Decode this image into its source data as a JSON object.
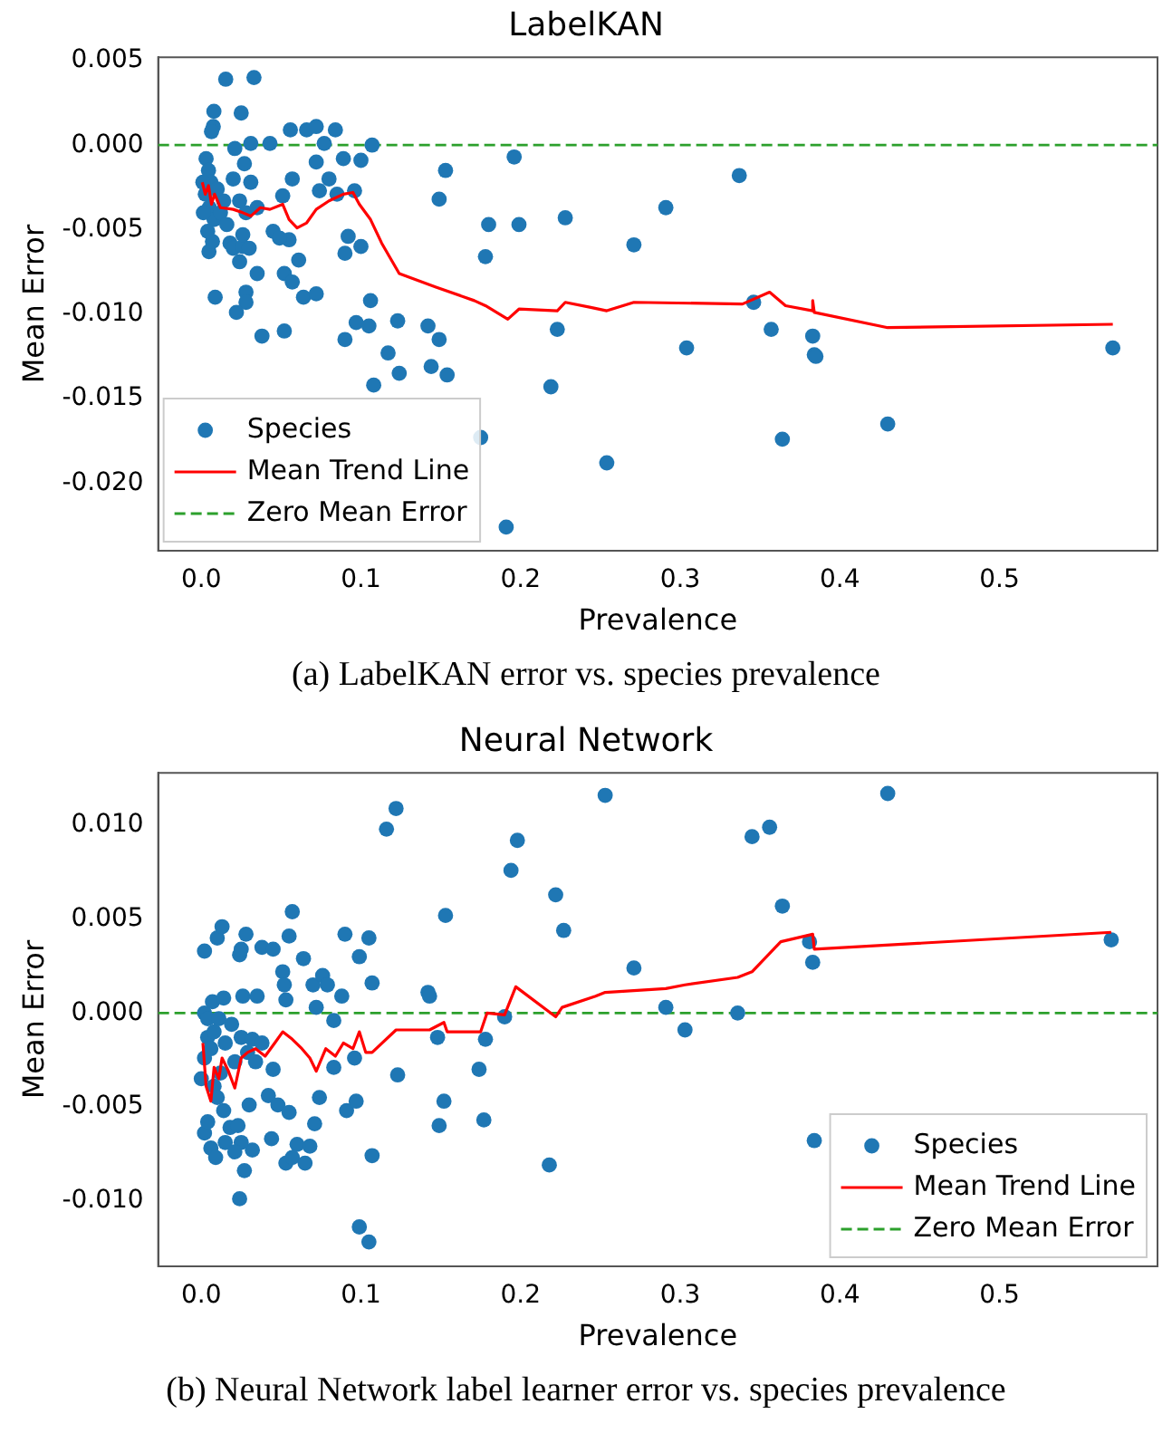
{
  "chart_data": [
    {
      "type": "scatter",
      "title": "LabelKAN",
      "xlabel": "Prevalence",
      "ylabel": "Mean Error",
      "annotations": [
        "(a) LabelKAN error vs. species prevalence"
      ],
      "xlim": [
        -0.027,
        0.599
      ],
      "ylim": [
        -0.024,
        0.0052
      ],
      "xticks": [
        {
          "value": 0,
          "label": "0.0"
        },
        {
          "value": 0.1,
          "label": "0.1"
        },
        {
          "value": 0.2,
          "label": "0.2"
        },
        {
          "value": 0.3,
          "label": "0.3"
        },
        {
          "value": 0.4,
          "label": "0.4"
        },
        {
          "value": 0.5,
          "label": "0.5"
        }
      ],
      "yticks": [
        {
          "value": -0.02,
          "label": "-0.020"
        },
        {
          "value": -0.015,
          "label": "-0.015"
        },
        {
          "value": -0.01,
          "label": "-0.010"
        },
        {
          "value": -0.005,
          "label": "-0.005"
        },
        {
          "value": 0,
          "label": "0.000"
        },
        {
          "value": 0.005,
          "label": "0.005"
        }
      ],
      "grid": false,
      "legend": "bottom left",
      "ref_lines": [
        {
          "axis": "y",
          "value": 0,
          "label": "Zero Mean Error",
          "color": "#2ca02c",
          "line_style": "dashed"
        }
      ],
      "series": [
        {
          "name": "Species",
          "type": "scatter",
          "color": "#1f77b4",
          "marker": "circle",
          "x": [
            0.0153,
            0.033,
            0.0079,
            0.025,
            0.0075,
            0.0064,
            0.0558,
            0.066,
            0.072,
            0.084,
            0.043,
            0.031,
            0.077,
            0.107,
            0.021,
            0.027,
            0.072,
            0.089,
            0.1,
            0.196,
            0.153,
            0.057,
            0.08,
            0.02,
            0.031,
            0.074,
            0.085,
            0.096,
            0.149,
            0.051,
            0.228,
            0.18,
            0.199,
            0.045,
            0.055,
            0.049,
            0.092,
            0.09,
            0.1,
            0.178,
            0.018,
            0.02,
            0.026,
            0.03,
            0.024,
            0.035,
            0.061,
            0.052,
            0.057,
            0.028,
            0.028,
            0.064,
            0.072,
            0.106,
            0.0087,
            0.022,
            0.038,
            0.052,
            0.09,
            0.097,
            0.105,
            0.123,
            0.142,
            0.149,
            0.223,
            0.117,
            0.124,
            0.144,
            0.154,
            0.108,
            0.219,
            0.175,
            0.191,
            0.0048,
            0.003,
            0.0045,
            0.006,
            0.0025,
            0.005,
            0.008,
            0.004,
            0.012,
            0.014,
            0.016,
            0.01,
            0.024,
            0.028,
            0.035,
            0.026,
            0.007,
            0.001,
            0.0013,
            0.337,
            0.291,
            0.271,
            0.346,
            0.357,
            0.383,
            0.384,
            0.385,
            0.304,
            0.43,
            0.364,
            0.254,
            0.571
          ],
          "values": [
            0.0039,
            0.004,
            0.002,
            0.0019,
            0.0011,
            0.0008,
            0.0009,
            0.0009,
            0.0011,
            0.0009,
            0.0001,
            0.0001,
            0.0001,
            0.0,
            -0.0002,
            -0.0011,
            -0.001,
            -0.0008,
            -0.0009,
            -0.0007,
            -0.0015,
            -0.002,
            -0.002,
            -0.002,
            -0.0022,
            -0.0027,
            -0.0029,
            -0.0027,
            -0.0032,
            -0.003,
            -0.0043,
            -0.0047,
            -0.0047,
            -0.0051,
            -0.0056,
            -0.0055,
            -0.0054,
            -0.0064,
            -0.006,
            -0.0066,
            -0.0058,
            -0.0061,
            -0.006,
            -0.0061,
            -0.0069,
            -0.0076,
            -0.0068,
            -0.0076,
            -0.0081,
            -0.0087,
            -0.0093,
            -0.009,
            -0.0088,
            -0.0092,
            -0.009,
            -0.0099,
            -0.0113,
            -0.011,
            -0.0115,
            -0.0105,
            -0.0107,
            -0.0104,
            -0.0107,
            -0.0115,
            -0.0109,
            -0.0123,
            -0.0135,
            -0.0131,
            -0.0136,
            -0.0142,
            -0.0143,
            -0.0173,
            -0.0226,
            -0.0063,
            -0.0008,
            -0.0015,
            -0.0022,
            -0.0029,
            -0.0037,
            -0.0044,
            -0.0051,
            -0.004,
            -0.0033,
            -0.0047,
            -0.0026,
            -0.0033,
            -0.004,
            -0.0037,
            -0.0053,
            -0.0057,
            -0.0022,
            -0.004,
            -0.0018,
            -0.0037,
            -0.0059,
            -0.0093,
            -0.0109,
            -0.0113,
            -0.0124,
            -0.0125,
            -0.012,
            -0.0165,
            -0.0174,
            -0.0188,
            -0.012
          ]
        },
        {
          "name": "Mean Trend Line",
          "type": "line",
          "color": "#ff0000",
          "marker": "none",
          "x": [
            0.0006,
            0.0025,
            0.0045,
            0.0064,
            0.0083,
            0.012,
            0.02,
            0.026,
            0.031,
            0.037,
            0.043,
            0.051,
            0.055,
            0.06,
            0.066,
            0.072,
            0.08,
            0.089,
            0.095,
            0.099,
            0.106,
            0.113,
            0.124,
            0.147,
            0.171,
            0.178,
            0.192,
            0.199,
            0.223,
            0.228,
            0.244,
            0.254,
            0.271,
            0.339,
            0.356,
            0.366,
            0.383,
            0.383,
            0.384,
            0.43,
            0.571
          ],
          "values": [
            -0.0022,
            -0.0029,
            -0.0024,
            -0.0035,
            -0.0029,
            -0.0037,
            -0.0038,
            -0.004,
            -0.0042,
            -0.0037,
            -0.0038,
            -0.0035,
            -0.0044,
            -0.0049,
            -0.0046,
            -0.0038,
            -0.0033,
            -0.0029,
            -0.0028,
            -0.0035,
            -0.0044,
            -0.0058,
            -0.0076,
            -0.0084,
            -0.0092,
            -0.0095,
            -0.0103,
            -0.0097,
            -0.0098,
            -0.0093,
            -0.0096,
            -0.0098,
            -0.0093,
            -0.0094,
            -0.0087,
            -0.0095,
            -0.0098,
            -0.0092,
            -0.0099,
            -0.0108,
            -0.0106
          ]
        }
      ]
    },
    {
      "type": "scatter",
      "title": "Neural Network",
      "xlabel": "Prevalence",
      "ylabel": "Mean Error",
      "annotations": [
        "(b) Neural Network label learner error vs. species prevalence"
      ],
      "xlim": [
        -0.027,
        0.599
      ],
      "ylim": [
        -0.0135,
        0.0128
      ],
      "xticks": [
        {
          "value": 0,
          "label": "0.0"
        },
        {
          "value": 0.1,
          "label": "0.1"
        },
        {
          "value": 0.2,
          "label": "0.2"
        },
        {
          "value": 0.3,
          "label": "0.3"
        },
        {
          "value": 0.4,
          "label": "0.4"
        },
        {
          "value": 0.5,
          "label": "0.5"
        }
      ],
      "yticks": [
        {
          "value": -0.01,
          "label": "-0.010"
        },
        {
          "value": -0.005,
          "label": "-0.005"
        },
        {
          "value": 0,
          "label": "0.000"
        },
        {
          "value": 0.005,
          "label": "0.005"
        },
        {
          "value": 0.01,
          "label": "0.010"
        }
      ],
      "grid": false,
      "legend": "bottom right",
      "ref_lines": [
        {
          "axis": "y",
          "value": 0,
          "label": "Zero Mean Error",
          "color": "#2ca02c",
          "line_style": "dashed"
        }
      ],
      "series": [
        {
          "name": "Species",
          "type": "scatter",
          "color": "#1f77b4",
          "marker": "circle",
          "x": [
            0.002,
            0.01,
            0.013,
            0.024,
            0.025,
            0.028,
            0.038,
            0.045,
            0.051,
            0.052,
            0.053,
            0.057,
            0.055,
            0.064,
            0.07,
            0.076,
            0.079,
            0.072,
            0.088,
            0.09,
            0.099,
            0.105,
            0.107,
            0.116,
            0.122,
            0.153,
            0.142,
            0.143,
            0.194,
            0.198,
            0.222,
            0.227,
            0.026,
            0.035,
            0.007,
            0.014,
            0.002,
            0.083,
            0.148,
            0.178,
            0.19,
            0.123,
            0.174,
            0.083,
            0.096,
            0.045,
            0.074,
            0.042,
            0.048,
            0.055,
            0.091,
            0.097,
            0.152,
            0.149,
            0.177,
            0.071,
            0.044,
            0.06,
            0.068,
            0.053,
            0.057,
            0.065,
            0.107,
            0.218,
            0.027,
            0.024,
            0.099,
            0.105,
            0.03,
            0.032,
            0.025,
            0.015,
            0.006,
            0.009,
            0.002,
            0.004,
            0.021,
            0.018,
            0.023,
            0.014,
            0.0,
            0.002,
            0.004,
            0.006,
            0.008,
            0.01,
            0.012,
            0.015,
            0.019,
            0.021,
            0.025,
            0.029,
            0.032,
            0.034,
            0.038,
            0.004,
            0.008,
            0.011,
            0.253,
            0.43,
            0.345,
            0.356,
            0.364,
            0.381,
            0.383,
            0.57,
            0.271,
            0.291,
            0.303,
            0.336,
            0.384
          ],
          "values": [
            0.0033,
            0.004,
            0.0046,
            0.0031,
            0.0034,
            0.0042,
            0.0035,
            0.0034,
            0.0022,
            0.0015,
            0.0007,
            0.0054,
            0.0041,
            0.0029,
            0.0015,
            0.002,
            0.0015,
            0.0003,
            0.0009,
            0.0042,
            0.003,
            0.004,
            0.0016,
            0.0098,
            0.0109,
            0.0052,
            0.0011,
            0.0009,
            0.0076,
            0.0092,
            0.0063,
            0.0044,
            0.0009,
            0.0009,
            0.0006,
            0.0008,
            0.0,
            -0.0004,
            -0.0013,
            -0.0014,
            -0.0002,
            -0.0033,
            -0.003,
            -0.0029,
            -0.0024,
            -0.003,
            -0.0045,
            -0.0044,
            -0.0049,
            -0.0053,
            -0.0052,
            -0.0047,
            -0.0047,
            -0.006,
            -0.0057,
            -0.0059,
            -0.0067,
            -0.007,
            -0.0071,
            -0.008,
            -0.0077,
            -0.008,
            -0.0076,
            -0.0081,
            -0.0084,
            -0.0099,
            -0.0114,
            -0.0122,
            -0.0049,
            -0.0073,
            -0.0069,
            -0.0069,
            -0.0072,
            -0.0077,
            -0.0064,
            -0.0058,
            -0.0074,
            -0.0061,
            -0.006,
            -0.0052,
            -0.0035,
            -0.0024,
            -0.0013,
            -0.0019,
            -0.0039,
            -0.0045,
            -0.0032,
            -0.0016,
            -0.0006,
            -0.0026,
            -0.0013,
            -0.0021,
            -0.0014,
            -0.0026,
            -0.0016,
            -0.0003,
            -0.001,
            -0.0003,
            0.0116,
            0.0117,
            0.0094,
            0.0099,
            0.0057,
            0.0038,
            0.0027,
            0.0039,
            0.0024,
            0.0003,
            -0.0009,
            0.0,
            -0.0068
          ]
        },
        {
          "name": "Mean Trend Line",
          "type": "line",
          "color": "#ff0000",
          "marker": "none",
          "x": [
            0.001,
            0.003,
            0.006,
            0.008,
            0.011,
            0.013,
            0.017,
            0.021,
            0.025,
            0.029,
            0.034,
            0.04,
            0.046,
            0.051,
            0.057,
            0.063,
            0.068,
            0.072,
            0.078,
            0.084,
            0.089,
            0.095,
            0.099,
            0.103,
            0.107,
            0.122,
            0.143,
            0.152,
            0.154,
            0.175,
            0.179,
            0.19,
            0.197,
            0.222,
            0.226,
            0.247,
            0.253,
            0.291,
            0.303,
            0.336,
            0.345,
            0.363,
            0.383,
            0.384,
            0.57
          ],
          "values": [
            -0.0016,
            -0.0039,
            -0.0047,
            -0.0029,
            -0.0035,
            -0.0024,
            -0.0031,
            -0.004,
            -0.0024,
            -0.0021,
            -0.0019,
            -0.0023,
            -0.0016,
            -0.001,
            -0.0014,
            -0.0019,
            -0.0024,
            -0.0031,
            -0.0019,
            -0.0023,
            -0.0016,
            -0.0019,
            -0.001,
            -0.0021,
            -0.0021,
            -0.0009,
            -0.0009,
            -0.0005,
            -0.001,
            -0.001,
            0.0,
            -0.0001,
            0.0014,
            -0.0002,
            0.0003,
            0.0009,
            0.0011,
            0.0013,
            0.0015,
            0.0019,
            0.0022,
            0.0038,
            0.0042,
            0.0034,
            0.0043
          ]
        }
      ]
    }
  ]
}
